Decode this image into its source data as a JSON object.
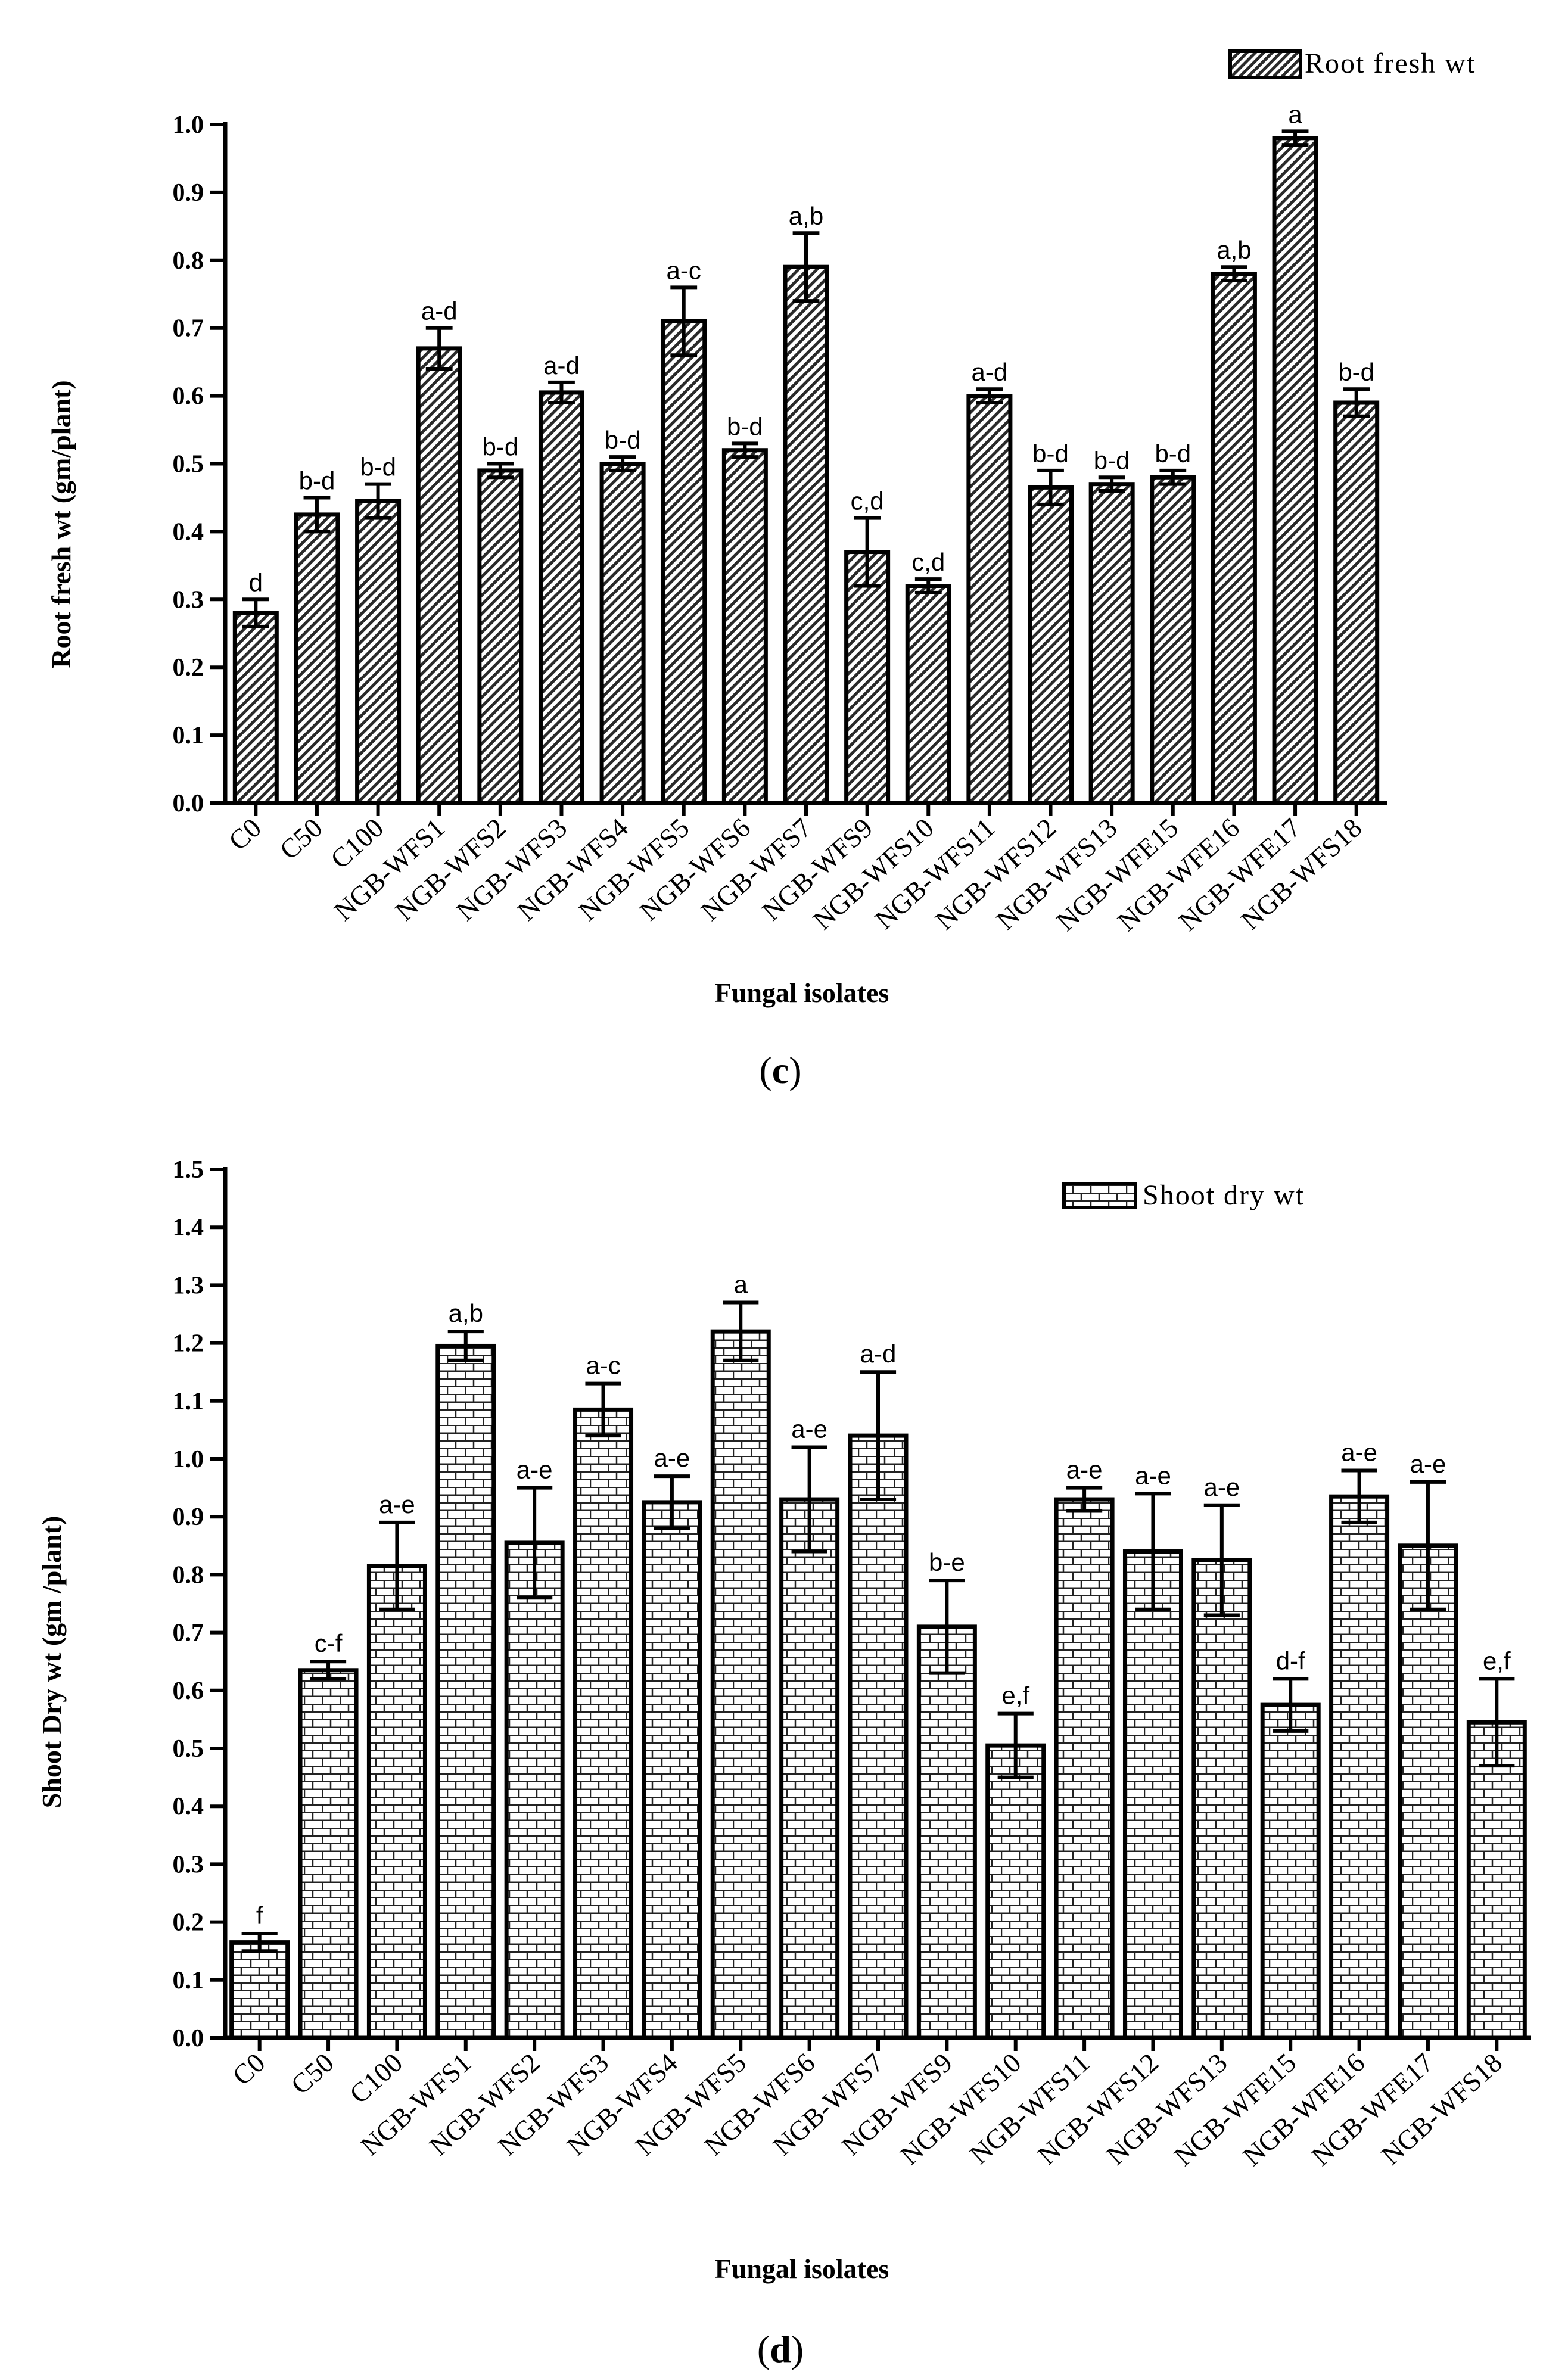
{
  "chart_data": [
    {
      "type": "bar",
      "panel": "c",
      "ylabel": "Root fresh wt (gm/plant)",
      "xlabel": "Fungal isolates",
      "ylim": [
        0,
        1.0
      ],
      "yticks": [
        "0.0",
        "0.1",
        "0.2",
        "0.3",
        "0.4",
        "0.5",
        "0.6",
        "0.7",
        "0.8",
        "0.9",
        "1.0"
      ],
      "legend": "Root fresh wt",
      "legend_position": "top-right",
      "pattern": "diagonal-hatch",
      "categories": [
        "C0",
        "C50",
        "C100",
        "NGB-WFS1",
        "NGB-WFS2",
        "NGB-WFS3",
        "NGB-WFS4",
        "NGB-WFS5",
        "NGB-WFS6",
        "NGB-WFS7",
        "NGB-WFS9",
        "NGB-WFS10",
        "NGB-WFS11",
        "NGB-WFS12",
        "NGB-WFS13",
        "NGB-WFE15",
        "NGB-WFE16",
        "NGB-WFE17",
        "NGB-WFS18"
      ],
      "values": [
        0.28,
        0.425,
        0.445,
        0.67,
        0.49,
        0.605,
        0.5,
        0.71,
        0.52,
        0.79,
        0.37,
        0.32,
        0.6,
        0.465,
        0.47,
        0.48,
        0.78,
        0.98,
        0.59
      ],
      "errors": [
        0.02,
        0.025,
        0.025,
        0.03,
        0.01,
        0.015,
        0.01,
        0.05,
        0.01,
        0.05,
        0.05,
        0.01,
        0.01,
        0.025,
        0.01,
        0.01,
        0.01,
        0.01,
        0.02
      ],
      "significance": [
        "d",
        "b-d",
        "b-d",
        "a-d",
        "b-d",
        "a-d",
        "b-d",
        "a-c",
        "b-d",
        "a,b",
        "c,d",
        "c,d",
        "a-d",
        "b-d",
        "b-d",
        "b-d",
        "a,b",
        "a",
        "b-d"
      ]
    },
    {
      "type": "bar",
      "panel": "d",
      "ylabel": "Shoot Dry wt (gm /plant)",
      "xlabel": "Fungal isolates",
      "ylim": [
        0,
        1.5
      ],
      "yticks": [
        "0.0",
        "0.1",
        "0.2",
        "0.3",
        "0.4",
        "0.5",
        "0.6",
        "0.7",
        "0.8",
        "0.9",
        "1.0",
        "1.1",
        "1.2",
        "1.3",
        "1.4",
        "1.5"
      ],
      "legend": "Shoot dry wt",
      "legend_position": "top-right",
      "pattern": "brick",
      "categories": [
        "C0",
        "C50",
        "C100",
        "NGB-WFS1",
        "NGB-WFS2",
        "NGB-WFS3",
        "NGB-WFS4",
        "NGB-WFS5",
        "NGB-WFS6",
        "NGB-WFS7",
        "NGB-WFS9",
        "NGB-WFS10",
        "NGB-WFS11",
        "NGB-WFS12",
        "NGB-WFS13",
        "NGB-WFE15",
        "NGB-WFE16",
        "NGB-WFE17",
        "NGB-WFS18"
      ],
      "values": [
        0.165,
        0.635,
        0.815,
        1.195,
        0.855,
        1.085,
        0.925,
        1.22,
        0.93,
        1.04,
        0.71,
        0.505,
        0.93,
        0.84,
        0.825,
        0.575,
        0.935,
        0.85,
        0.545
      ],
      "errors": [
        0.015,
        0.015,
        0.075,
        0.025,
        0.095,
        0.045,
        0.045,
        0.05,
        0.09,
        0.11,
        0.08,
        0.055,
        0.02,
        0.1,
        0.095,
        0.045,
        0.045,
        0.11,
        0.075
      ],
      "significance": [
        "f",
        "c-f",
        "a-e",
        "a,b",
        "a-e",
        "a-c",
        "a-e",
        "a",
        "a-e",
        "a-d",
        "b-e",
        "e,f",
        "a-e",
        "a-e",
        "a-e",
        "d-f",
        "a-e",
        "a-e",
        "e,f"
      ]
    }
  ],
  "panel_labels": {
    "c": "c",
    "d": "d"
  }
}
